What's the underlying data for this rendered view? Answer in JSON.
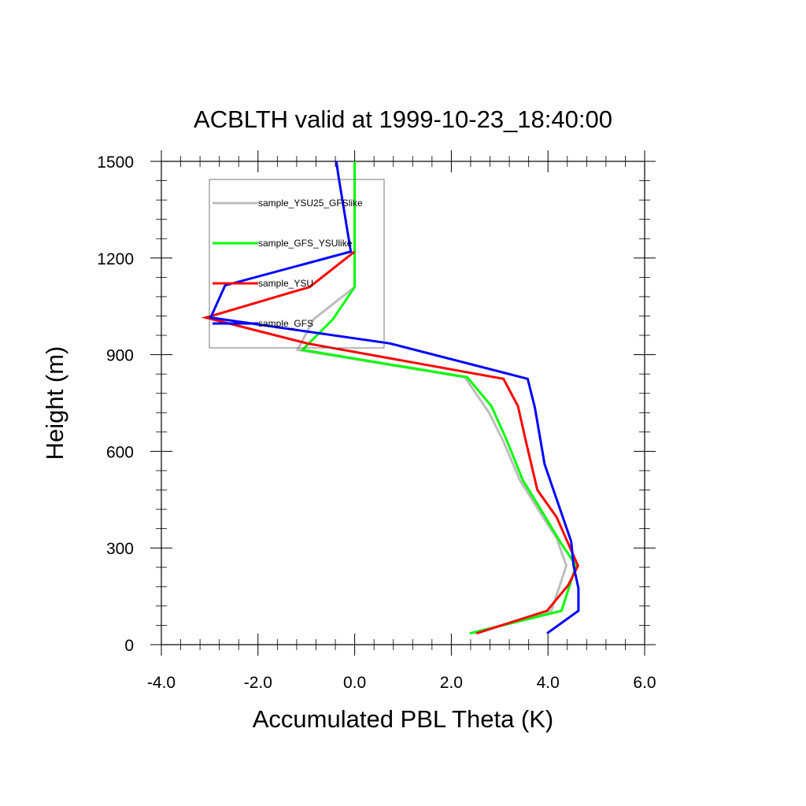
{
  "chart_data": {
    "type": "line",
    "title": "ACBLTH valid at 1999-10-23_18:40:00",
    "xlabel": "Accumulated PBL Theta (K)",
    "ylabel": "Height (m)",
    "xlim": [
      -4.0,
      6.0
    ],
    "ylim": [
      0,
      1500
    ],
    "xticks": [
      "-4.0",
      "-2.0",
      "0.0",
      "2.0",
      "4.0",
      "6.0"
    ],
    "yticks": [
      "0",
      "300",
      "600",
      "900",
      "1200",
      "1500"
    ],
    "xtick_values": [
      -4,
      -2,
      0,
      2,
      4,
      6
    ],
    "ytick_values": [
      0,
      300,
      600,
      900,
      1200,
      1500
    ],
    "grid": false,
    "legend_position": "top-left",
    "series": [
      {
        "name": "sample_YSU25_GFSlike",
        "color": "#bdbdbd",
        "x": [
          2.48,
          4.07,
          4.38,
          4.18,
          3.88,
          3.42,
          3.08,
          2.78,
          2.28,
          -1.18,
          -0.85,
          0.0,
          0.0,
          0.0
        ],
        "y": [
          35,
          105,
          245,
          330,
          400,
          510,
          630,
          720,
          830,
          915,
          1010,
          1110,
          1220,
          1500
        ]
      },
      {
        "name": "sample_GFS_YSUlike",
        "color": "#00ff00",
        "x": [
          2.38,
          4.28,
          4.58,
          4.25,
          3.93,
          3.48,
          3.13,
          2.83,
          2.33,
          -1.08,
          -0.45,
          0.0,
          0.0,
          0.0
        ],
        "y": [
          35,
          105,
          245,
          320,
          400,
          510,
          640,
          740,
          830,
          915,
          1010,
          1110,
          1220,
          1500
        ]
      },
      {
        "name": "sample_YSU",
        "color": "#ff0000",
        "x": [
          2.52,
          3.98,
          4.42,
          4.62,
          4.18,
          3.78,
          3.53,
          3.38,
          3.08,
          -0.98,
          -3.08,
          -0.93,
          0.0
        ],
        "y": [
          35,
          105,
          185,
          245,
          395,
          480,
          640,
          740,
          825,
          935,
          1015,
          1110,
          1220
        ]
      },
      {
        "name": "sample_GFS",
        "color": "#0000ff",
        "x": [
          3.98,
          4.63,
          4.63,
          4.53,
          4.48,
          3.93,
          3.73,
          3.58,
          0.73,
          -2.98,
          -2.68,
          -0.08,
          -0.33,
          -0.38
        ],
        "y": [
          35,
          105,
          175,
          245,
          320,
          560,
          735,
          825,
          935,
          1015,
          1115,
          1220,
          1450,
          1500
        ]
      }
    ]
  }
}
